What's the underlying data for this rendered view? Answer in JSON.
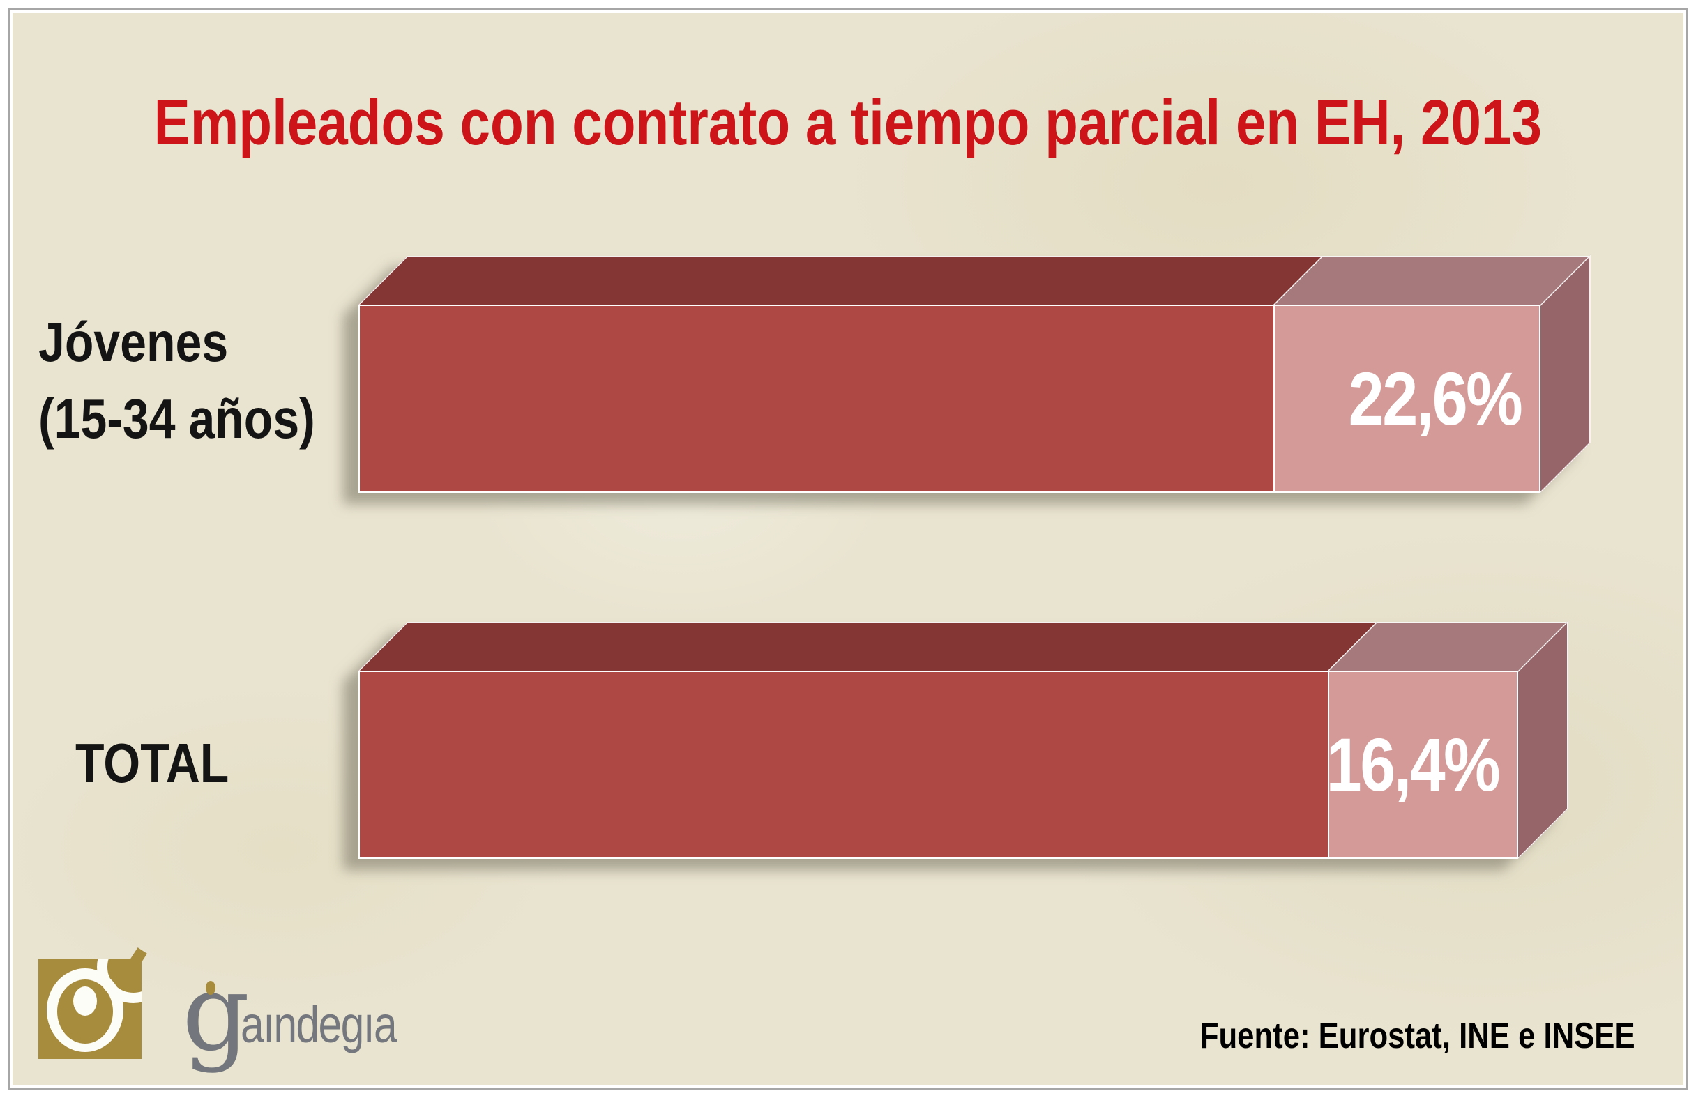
{
  "title": "Empleados con contrato a tiempo parcial en EH, 2013",
  "chart_data": {
    "type": "bar",
    "orientation": "horizontal",
    "title": "Empleados con contrato a tiempo parcial en EH, 2013",
    "categories": [
      "Jóvenes (15-34 años)",
      "TOTAL"
    ],
    "values": [
      22.6,
      16.4
    ],
    "value_labels": [
      "22,6%",
      "16,4%"
    ],
    "unit": "%",
    "legend": false,
    "gridlines": false,
    "source": "Fuente: Eurostat, INE e INSEE",
    "colors": {
      "title": "#cc1419",
      "bar_front": "#ad4844",
      "bar_top": "#833634",
      "tip_front": "#d49a98",
      "tip_top": "#a67a7d",
      "tip_side": "#966569",
      "value_text": "#ffffff",
      "label_text": "#141414",
      "background": "#e9e4d0",
      "logo_gold": "#a78c3e",
      "logo_gray": "#74777d"
    }
  },
  "bars": [
    {
      "label_lines": [
        "Jóvenes",
        "(15-34 años)"
      ],
      "value": 22.6,
      "value_label": "22,6%"
    },
    {
      "label_lines": [
        "TOTAL",
        ""
      ],
      "value": 16.4,
      "value_label": "16,4%"
    }
  ],
  "footer": {
    "source": "Fuente: Eurostat, INE e INSEE",
    "logo_initial": "g",
    "logo_rest": "aındegıa",
    "logo_name": "gaindegia"
  }
}
